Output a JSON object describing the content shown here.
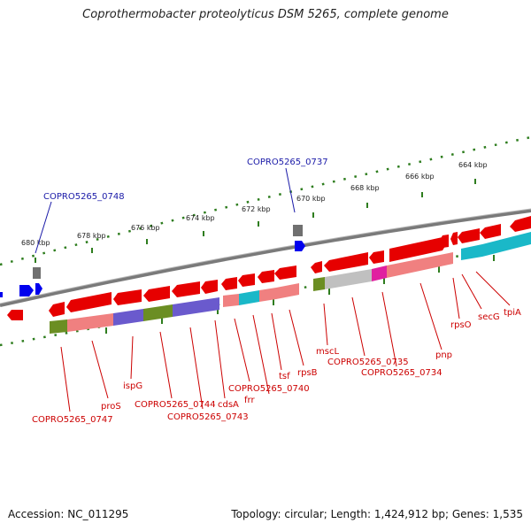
{
  "title": "Coprothermobacter proteolyticus DSM 5265, complete genome",
  "accession": "Accession: NC_011295",
  "summary": "Topology: circular; Length: 1,424,912 bp; Genes: 1,535",
  "ruler_labels": [
    "680 kbp",
    "678 kbp",
    "676 kbp",
    "674 kbp",
    "672 kbp",
    "670 kbp",
    "668 kbp",
    "666 kbp",
    "664 kbp"
  ],
  "top_labels": [
    "COPRO5265_0748",
    "COPRO5265_0737"
  ],
  "gene_labels": [
    "COPRO5265_0747",
    "proS",
    "ispG",
    "COPRO5265_0744",
    "COPRO5265_0743",
    "cdsA",
    "COPRO5265_0740",
    "frr",
    "tsf",
    "rpsB",
    "mscL",
    "COPRO5265_0735",
    "COPRO5265_0734",
    "pnp",
    "rpsO",
    "secG",
    "tpiA"
  ],
  "colors": {
    "gene_red": "#e60000",
    "backbone": "#808080",
    "tick_green": "#2e7d1e",
    "label_red": "#cc0000",
    "label_blue": "#1a1aa8",
    "small_blue": "#0000ff",
    "cog_cyan": "#1ab8c8",
    "cog_purple": "#6a5acd",
    "cog_olive": "#6b8e23",
    "cog_pink": "#f08080",
    "cog_grey": "#c0c0c0",
    "cog_magenta": "#e020a0"
  }
}
